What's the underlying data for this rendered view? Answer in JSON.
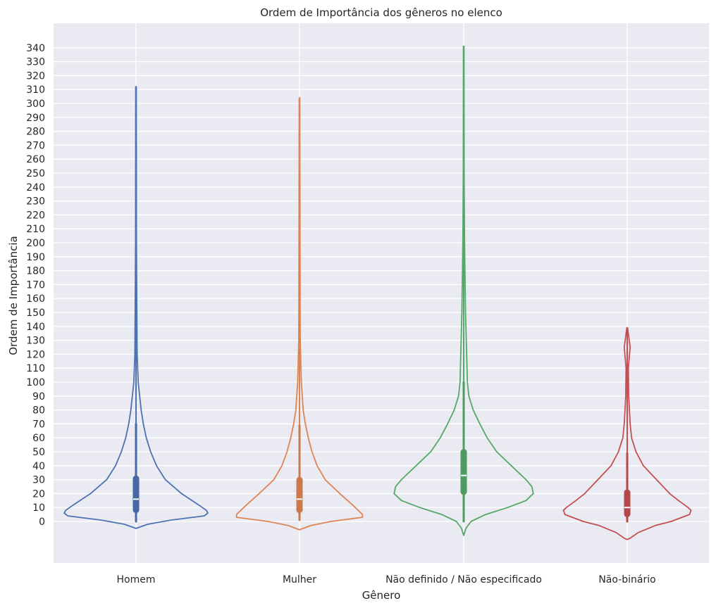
{
  "chart_data": {
    "type": "violin",
    "title": "Ordem de Importância dos gêneros no elenco",
    "xlabel": "Gênero",
    "ylabel": "Ordem de Importância",
    "categories": [
      "Homem",
      "Mulher",
      "Não definido / Não especificado",
      "Não-binário"
    ],
    "ylim": [
      -30,
      355
    ],
    "yticks": [
      0,
      10,
      20,
      30,
      40,
      50,
      60,
      70,
      80,
      90,
      100,
      110,
      120,
      130,
      140,
      150,
      160,
      170,
      180,
      190,
      200,
      210,
      220,
      230,
      240,
      250,
      260,
      270,
      280,
      290,
      300,
      310,
      320,
      330,
      340
    ],
    "grid": true,
    "series": [
      {
        "category": "Homem",
        "color": "#4c72b0",
        "stats": {
          "min": 0,
          "q1": 6,
          "median": 16,
          "q3": 33,
          "whisker_high": 70,
          "max": 312
        },
        "density_outline": [
          [
            -5,
            0
          ],
          [
            -2,
            0.16
          ],
          [
            1,
            0.48
          ],
          [
            4,
            0.93
          ],
          [
            6,
            0.98
          ],
          [
            8,
            0.96
          ],
          [
            12,
            0.85
          ],
          [
            20,
            0.62
          ],
          [
            30,
            0.4
          ],
          [
            40,
            0.28
          ],
          [
            50,
            0.2
          ],
          [
            60,
            0.14
          ],
          [
            70,
            0.1
          ],
          [
            80,
            0.07
          ],
          [
            100,
            0.03
          ],
          [
            120,
            0.015
          ],
          [
            200,
            0.006
          ],
          [
            312,
            0.004
          ]
        ]
      },
      {
        "category": "Mulher",
        "color": "#dd8452",
        "stats": {
          "min": 1,
          "q1": 6,
          "median": 16,
          "q3": 32,
          "whisker_high": 69,
          "max": 304
        },
        "density_outline": [
          [
            -6,
            0
          ],
          [
            -3,
            0.15
          ],
          [
            0,
            0.43
          ],
          [
            3,
            0.86
          ],
          [
            5,
            0.86
          ],
          [
            7,
            0.82
          ],
          [
            12,
            0.72
          ],
          [
            20,
            0.55
          ],
          [
            30,
            0.35
          ],
          [
            40,
            0.24
          ],
          [
            50,
            0.17
          ],
          [
            60,
            0.12
          ],
          [
            70,
            0.08
          ],
          [
            80,
            0.05
          ],
          [
            100,
            0.025
          ],
          [
            130,
            0.01
          ],
          [
            304,
            0.004
          ]
        ]
      },
      {
        "category": "Não definido / Não especificado",
        "color": "#55a868",
        "stats": {
          "min": 0,
          "q1": 19,
          "median": 33,
          "q3": 52,
          "whisker_high": 100,
          "max": 341
        },
        "density_outline": [
          [
            -10,
            0
          ],
          [
            -5,
            0.03
          ],
          [
            0,
            0.1
          ],
          [
            5,
            0.3
          ],
          [
            10,
            0.6
          ],
          [
            15,
            0.85
          ],
          [
            20,
            0.95
          ],
          [
            25,
            0.93
          ],
          [
            30,
            0.85
          ],
          [
            40,
            0.65
          ],
          [
            50,
            0.45
          ],
          [
            60,
            0.32
          ],
          [
            70,
            0.22
          ],
          [
            80,
            0.13
          ],
          [
            90,
            0.07
          ],
          [
            100,
            0.05
          ],
          [
            150,
            0.025
          ],
          [
            200,
            0.012
          ],
          [
            250,
            0.006
          ],
          [
            341,
            0.004
          ]
        ]
      },
      {
        "category": "Não-binário",
        "color": "#c44e52",
        "stats": {
          "min": 0,
          "q1": 3,
          "median": 10,
          "q3": 23,
          "whisker_high": 49,
          "max": 139
        },
        "density_outline": [
          [
            -13,
            0
          ],
          [
            -12,
            0.04
          ],
          [
            -8,
            0.15
          ],
          [
            -3,
            0.38
          ],
          [
            0,
            0.6
          ],
          [
            5,
            0.85
          ],
          [
            8,
            0.87
          ],
          [
            10,
            0.83
          ],
          [
            15,
            0.7
          ],
          [
            20,
            0.58
          ],
          [
            30,
            0.4
          ],
          [
            40,
            0.22
          ],
          [
            50,
            0.12
          ],
          [
            60,
            0.06
          ],
          [
            70,
            0.04
          ],
          [
            90,
            0.02
          ],
          [
            110,
            0.015
          ],
          [
            125,
            0.04
          ],
          [
            139,
            0.005
          ]
        ]
      }
    ]
  }
}
